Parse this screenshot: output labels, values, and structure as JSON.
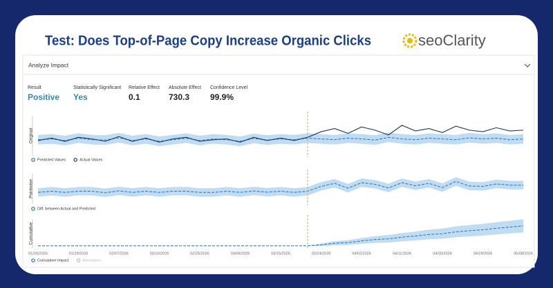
{
  "header": {
    "title": "Test: Does Top-of-Page Copy Increase Organic Clicks",
    "logo": "seoClarity"
  },
  "section": "Analyze Impact",
  "metrics": [
    {
      "label": "Result",
      "value": "Positive"
    },
    {
      "label": "Statistically Significant",
      "value": "Yes"
    },
    {
      "label": "Relative Effect",
      "value": "0.1"
    },
    {
      "label": "Absolute Effect",
      "value": "730.3"
    },
    {
      "label": "Confidence Level",
      "value": "99.9%"
    }
  ],
  "chart_data": [
    {
      "type": "line",
      "ylabel": "Original",
      "x": [
        "01/20/2026",
        "01/23/2026",
        "01/26/2026",
        "01/29/2026",
        "02/01/2026",
        "02/04/2026",
        "02/07/2026",
        "02/10/2026",
        "02/13/2026",
        "02/16/2026",
        "02/19/2026",
        "02/22/2026",
        "02/25/2026",
        "02/28/2026",
        "03/03/2026",
        "03/06/2026",
        "03/09/2026",
        "03/12/2026",
        "03/15/2026",
        "03/18/2026",
        "03/21/2026",
        "03/24/2026",
        "03/27/2026",
        "03/30/2026",
        "04/02/2026",
        "04/05/2026",
        "04/08/2026",
        "04/11/2026",
        "04/14/2026",
        "04/17/2026",
        "04/20/2026",
        "04/23/2026",
        "04/26/2026",
        "04/29/2026",
        "05/02/2026",
        "05/05/2026",
        "05/08/2026"
      ],
      "ylim": [
        2000,
        4500
      ],
      "annotation_x": "03/21/2026",
      "series": [
        {
          "name": "Predicted Values",
          "color": "#2a6fb0",
          "dashed": true,
          "band": 300,
          "band_color": "#bfdcf3",
          "values": [
            3000,
            3050,
            2950,
            3100,
            3000,
            2980,
            3120,
            2950,
            3050,
            2900,
            3000,
            3100,
            2950,
            3050,
            3000,
            2900,
            3080,
            2980,
            3050,
            3000,
            3100,
            3050,
            3000,
            3100,
            3050,
            2980,
            3150,
            3050,
            3000,
            3100,
            3050,
            3000,
            3120,
            3050,
            3100,
            3000,
            3050
          ]
        },
        {
          "name": "Actual Values",
          "color": "#1d3557",
          "dashed": false,
          "values": [
            2950,
            3100,
            2900,
            3150,
            3050,
            2900,
            3200,
            2900,
            3100,
            2850,
            3050,
            3150,
            2900,
            3000,
            3050,
            2850,
            3150,
            2950,
            3100,
            2950,
            3150,
            3500,
            3700,
            3400,
            3800,
            3600,
            3300,
            3900,
            3550,
            3700,
            3450,
            3850,
            3600,
            3500,
            3750,
            3550,
            3600
          ]
        }
      ]
    },
    {
      "type": "line",
      "ylabel": "Pointwise",
      "x": [
        "01/20/2026",
        "01/23/2026",
        "01/26/2026",
        "01/29/2026",
        "02/01/2026",
        "02/04/2026",
        "02/07/2026",
        "02/10/2026",
        "02/13/2026",
        "02/16/2026",
        "02/19/2026",
        "02/22/2026",
        "02/25/2026",
        "02/28/2026",
        "03/03/2026",
        "03/06/2026",
        "03/09/2026",
        "03/12/2026",
        "03/15/2026",
        "03/18/2026",
        "03/21/2026",
        "03/24/2026",
        "03/27/2026",
        "03/30/2026",
        "04/02/2026",
        "04/05/2026",
        "04/08/2026",
        "04/11/2026",
        "04/14/2026",
        "04/17/2026",
        "04/20/2026",
        "04/23/2026",
        "04/26/2026",
        "04/29/2026",
        "05/02/2026",
        "05/05/2026",
        "05/08/2026"
      ],
      "ylim": [
        -1000,
        1500
      ],
      "annotation_x": "03/21/2026",
      "series": [
        {
          "name": "Diff. between Actual and Predicted",
          "color": "#2a6fb0",
          "dashed": true,
          "band": 350,
          "band_color": "#bfdcf3",
          "values": [
            -50,
            50,
            -50,
            50,
            50,
            -80,
            80,
            -50,
            50,
            -50,
            50,
            50,
            -50,
            -50,
            50,
            -50,
            70,
            -30,
            50,
            -50,
            50,
            450,
            700,
            300,
            750,
            620,
            320,
            750,
            500,
            700,
            350,
            850,
            480,
            450,
            650,
            550,
            550
          ]
        }
      ]
    },
    {
      "type": "line",
      "ylabel": "Cumulative",
      "x": [
        "01/20/2026",
        "01/23/2026",
        "01/26/2026",
        "01/29/2026",
        "02/01/2026",
        "02/04/2026",
        "02/07/2026",
        "02/10/2026",
        "02/13/2026",
        "02/16/2026",
        "02/19/2026",
        "02/22/2026",
        "02/25/2026",
        "02/28/2026",
        "03/03/2026",
        "03/06/2026",
        "03/09/2026",
        "03/12/2026",
        "03/15/2026",
        "03/18/2026",
        "03/21/2026",
        "03/24/2026",
        "03/27/2026",
        "03/30/2026",
        "04/02/2026",
        "04/05/2026",
        "04/08/2026",
        "04/11/2026",
        "04/14/2026",
        "04/17/2026",
        "04/20/2026",
        "04/23/2026",
        "04/26/2026",
        "04/29/2026",
        "05/02/2026",
        "05/05/2026",
        "05/08/2026"
      ],
      "xticks": [
        "01/20/2026",
        "01/29/2026",
        "02/07/2026",
        "02/16/2026",
        "02/25/2026",
        "03/06/2026",
        "03/15/2026",
        "03/24/2026",
        "04/02/2026",
        "04/11/2026",
        "04/20/2026",
        "04/29/2026",
        "05/08/2026"
      ],
      "ylim": [
        -1000,
        12000
      ],
      "annotation_x": "03/21/2026",
      "annotation_label": "Annotation",
      "series": [
        {
          "name": "Cumulative Impact",
          "color": "#2a6fb0",
          "dashed": true,
          "band_color": "#bfdcf3",
          "band": [
            0,
            0,
            0,
            0,
            0,
            0,
            0,
            0,
            0,
            0,
            0,
            0,
            0,
            0,
            0,
            0,
            0,
            0,
            0,
            0,
            0,
            600,
            900,
            1100,
            1300,
            1500,
            1700,
            1850,
            2000,
            2150,
            2300,
            2450,
            2550,
            2650,
            2750,
            2850,
            2950
          ],
          "values": [
            0,
            0,
            0,
            0,
            0,
            0,
            0,
            0,
            0,
            0,
            0,
            0,
            0,
            0,
            0,
            0,
            0,
            0,
            0,
            0,
            0,
            450,
            1150,
            1450,
            2200,
            2820,
            3140,
            3890,
            4390,
            5090,
            5440,
            6290,
            6770,
            7220,
            7870,
            8420,
            8970
          ]
        }
      ]
    }
  ]
}
